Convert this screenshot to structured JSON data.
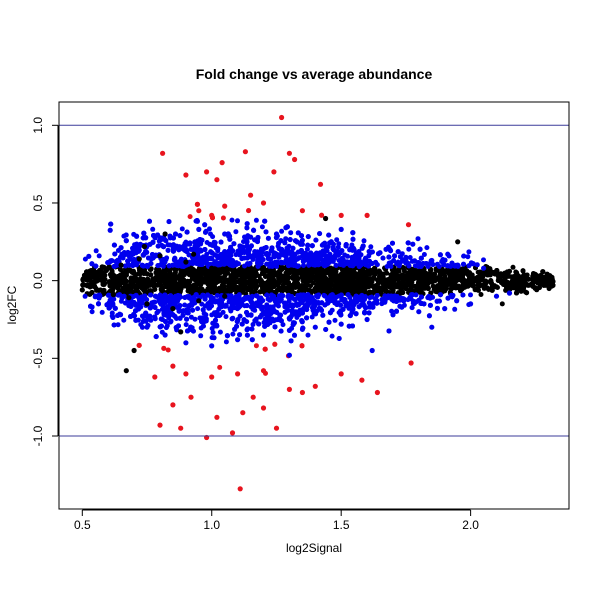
{
  "chart_data": {
    "type": "scatter",
    "title": "Fold change vs average abundance",
    "xlabel": "log2Signal",
    "ylabel": "log2FC",
    "xlim": [
      0.41,
      2.38
    ],
    "ylim": [
      -1.47,
      1.15
    ],
    "x_ticks": [
      0.5,
      1.0,
      1.5,
      2.0
    ],
    "x_tick_labels": [
      "0.5",
      "1.0",
      "1.5",
      "2.0"
    ],
    "y_ticks": [
      -1.0,
      -0.5,
      0.0,
      0.5,
      1.0
    ],
    "y_tick_labels": [
      "-1.0",
      "-0.5",
      "0.0",
      "0.5",
      "1.0"
    ],
    "grid": false,
    "reference_lines": [
      {
        "axis": "y",
        "value": 1.0,
        "color": "#3b3b9a"
      },
      {
        "axis": "y",
        "value": -1.0,
        "color": "#3b3b9a"
      }
    ],
    "colors": {
      "neutral": "#000000",
      "moderate": "#0000ee",
      "strong": "#e8141e"
    },
    "point_groups": [
      {
        "group": "neutral",
        "description_points": "most dense band near zero across full signal range",
        "points": [
          [
            0.51,
            0.02
          ],
          [
            0.53,
            -0.04
          ],
          [
            0.55,
            0.05
          ],
          [
            0.57,
            -0.06
          ],
          [
            0.6,
            0.08
          ],
          [
            0.62,
            -0.09
          ],
          [
            0.65,
            0.1
          ],
          [
            0.68,
            -0.11
          ],
          [
            0.72,
            0.14
          ],
          [
            0.75,
            -0.15
          ],
          [
            0.8,
            0.16
          ],
          [
            0.85,
            -0.18
          ],
          [
            0.9,
            0.12
          ],
          [
            0.95,
            -0.13
          ],
          [
            1.0,
            0.08
          ],
          [
            1.05,
            -0.1
          ],
          [
            1.1,
            0.06
          ],
          [
            1.2,
            -0.07
          ],
          [
            1.3,
            0.05
          ],
          [
            1.4,
            -0.05
          ],
          [
            1.5,
            0.04
          ],
          [
            1.6,
            -0.04
          ],
          [
            1.7,
            0.03
          ],
          [
            1.8,
            -0.03
          ],
          [
            1.9,
            0.03
          ],
          [
            2.0,
            -0.02
          ],
          [
            2.05,
            0.05
          ],
          [
            2.1,
            -0.04
          ],
          [
            2.15,
            0.06
          ],
          [
            2.2,
            -0.03
          ],
          [
            2.25,
            0.04
          ],
          [
            2.3,
            -0.02
          ],
          [
            0.67,
            -0.58
          ],
          [
            0.7,
            -0.45
          ],
          [
            0.74,
            0.22
          ],
          [
            0.93,
            0.17
          ],
          [
            0.82,
            0.3
          ],
          [
            0.88,
            -0.33
          ],
          [
            1.95,
            0.25
          ],
          [
            1.44,
            0.4
          ]
        ]
      },
      {
        "group": "moderate",
        "description_points": "blue band between roughly |0.1| and |0.5|",
        "points": [
          [
            0.72,
            0.22
          ],
          [
            0.75,
            -0.3
          ],
          [
            0.78,
            0.28
          ],
          [
            0.82,
            -0.35
          ],
          [
            0.86,
            0.3
          ],
          [
            0.9,
            -0.4
          ],
          [
            0.95,
            0.33
          ],
          [
            1.0,
            -0.42
          ],
          [
            1.05,
            0.3
          ],
          [
            1.1,
            -0.38
          ],
          [
            1.15,
            0.28
          ],
          [
            1.2,
            -0.35
          ],
          [
            1.25,
            0.3
          ],
          [
            1.3,
            -0.32
          ],
          [
            1.35,
            0.26
          ],
          [
            1.4,
            -0.3
          ],
          [
            1.45,
            0.22
          ],
          [
            1.5,
            -0.28
          ],
          [
            1.55,
            0.2
          ],
          [
            1.6,
            -0.25
          ],
          [
            1.65,
            0.18
          ],
          [
            1.7,
            -0.22
          ],
          [
            1.75,
            0.15
          ],
          [
            1.8,
            -0.2
          ],
          [
            1.85,
            0.13
          ],
          [
            1.9,
            -0.18
          ],
          [
            1.95,
            0.1
          ],
          [
            2.0,
            -0.15
          ],
          [
            2.05,
            0.08
          ],
          [
            2.1,
            -0.1
          ],
          [
            2.15,
            -0.08
          ],
          [
            1.62,
            -0.45
          ],
          [
            1.85,
            -0.3
          ],
          [
            1.3,
            -0.48
          ],
          [
            1.5,
            0.33
          ]
        ]
      },
      {
        "group": "strong",
        "description_points": "red points beyond roughly |0.4|",
        "points": [
          [
            0.81,
            0.82
          ],
          [
            0.9,
            0.68
          ],
          [
            0.98,
            0.7
          ],
          [
            1.02,
            0.65
          ],
          [
            1.04,
            0.76
          ],
          [
            1.13,
            0.83
          ],
          [
            1.24,
            0.7
          ],
          [
            1.27,
            1.05
          ],
          [
            1.3,
            0.82
          ],
          [
            1.42,
            0.62
          ],
          [
            1.32,
            0.78
          ],
          [
            0.95,
            0.45
          ],
          [
            1.0,
            0.42
          ],
          [
            1.05,
            0.48
          ],
          [
            1.15,
            0.55
          ],
          [
            1.2,
            0.5
          ],
          [
            1.35,
            0.45
          ],
          [
            1.5,
            0.42
          ],
          [
            1.6,
            0.42
          ],
          [
            1.76,
            0.36
          ],
          [
            0.78,
            -0.62
          ],
          [
            0.8,
            -0.93
          ],
          [
            0.85,
            -0.8
          ],
          [
            0.88,
            -0.95
          ],
          [
            0.92,
            -0.75
          ],
          [
            0.98,
            -1.01
          ],
          [
            1.02,
            -0.88
          ],
          [
            1.08,
            -0.98
          ],
          [
            1.12,
            -0.85
          ],
          [
            1.16,
            -0.75
          ],
          [
            1.2,
            -0.82
          ],
          [
            1.25,
            -0.95
          ],
          [
            1.3,
            -0.7
          ],
          [
            1.35,
            -0.72
          ],
          [
            1.4,
            -0.68
          ],
          [
            1.5,
            -0.6
          ],
          [
            1.58,
            -0.64
          ],
          [
            1.64,
            -0.72
          ],
          [
            1.77,
            -0.53
          ],
          [
            1.11,
            -1.34
          ],
          [
            0.9,
            -0.6
          ],
          [
            1.0,
            -0.62
          ],
          [
            1.1,
            -0.6
          ],
          [
            0.85,
            -0.55
          ],
          [
            1.2,
            -0.58
          ]
        ]
      }
    ]
  }
}
